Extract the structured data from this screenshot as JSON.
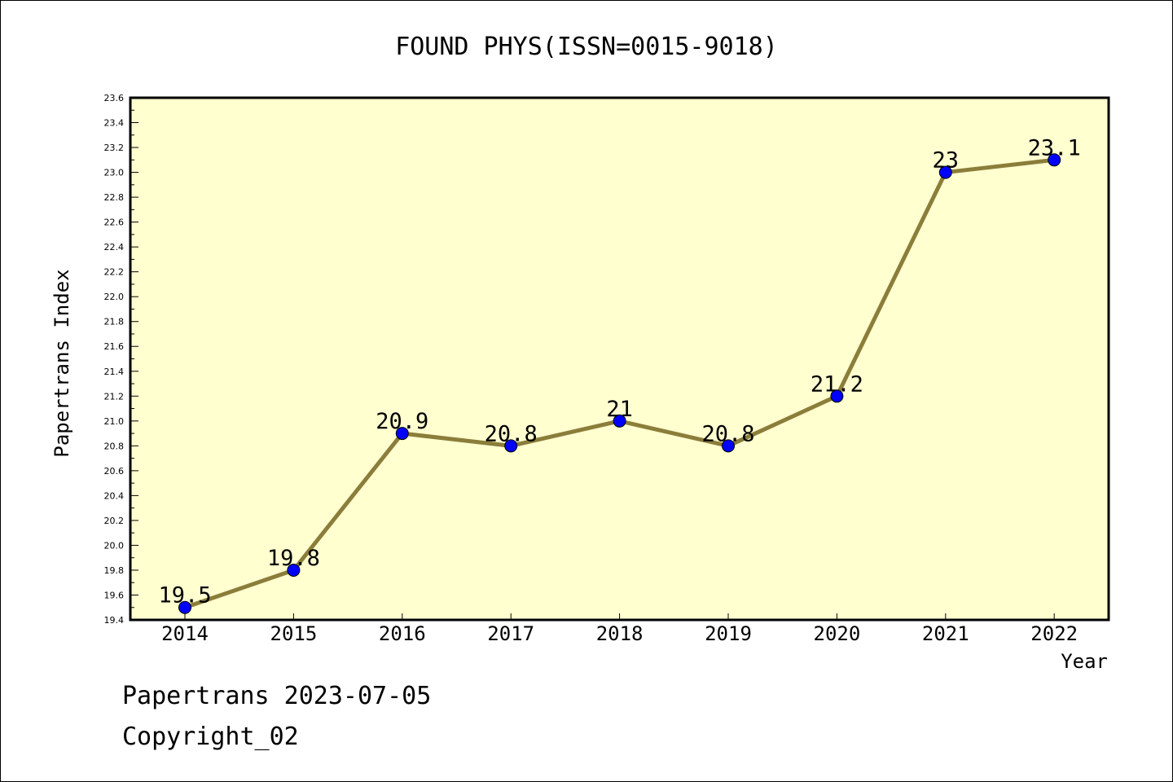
{
  "chart_data": {
    "type": "line",
    "title": "FOUND PHYS(ISSN=0015-9018)",
    "xlabel": "Year",
    "ylabel": "Papertrans Index",
    "categories": [
      "2014",
      "2015",
      "2016",
      "2017",
      "2018",
      "2019",
      "2020",
      "2021",
      "2022"
    ],
    "values": [
      19.5,
      19.8,
      20.9,
      20.8,
      21.0,
      20.8,
      21.2,
      23.0,
      23.1
    ],
    "data_labels": [
      "19.5",
      "19.8",
      "20.9",
      "20.8",
      "21",
      "20.8",
      "21.2",
      "23",
      "23.1"
    ],
    "ylim": [
      19.4,
      23.6
    ],
    "yticks": [
      "19.4",
      "19.6",
      "19.8",
      "20.0",
      "20.2",
      "20.4",
      "20.6",
      "20.8",
      "21.0",
      "21.2",
      "21.4",
      "21.6",
      "21.8",
      "22.0",
      "22.2",
      "22.4",
      "22.6",
      "22.8",
      "23.0",
      "23.2",
      "23.4",
      "23.6"
    ],
    "grid": false,
    "legend": "none"
  },
  "footer": {
    "line1": "Papertrans 2023-07-05",
    "line2": "Copyright_02"
  },
  "colors": {
    "plot_background": "#ffffd0",
    "line": "#8b7d3a",
    "marker": "#0000ff"
  }
}
